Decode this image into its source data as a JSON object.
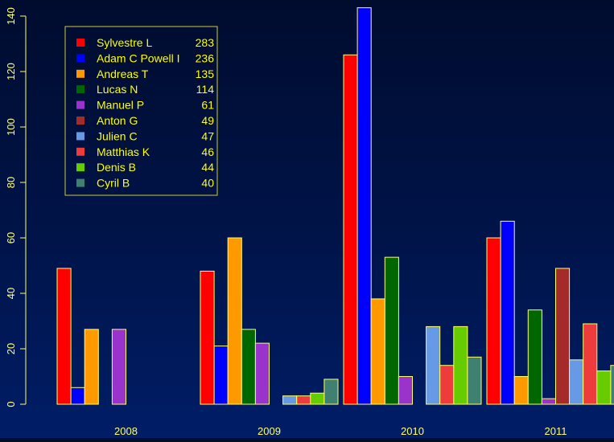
{
  "chart_data": {
    "type": "bar",
    "title": "",
    "xlabel": "",
    "ylabel": "",
    "categories": [
      "2008",
      "2009",
      "2010",
      "2011"
    ],
    "ylim": [
      0,
      140
    ],
    "yticks": [
      0,
      20,
      40,
      60,
      80,
      100,
      120,
      140
    ],
    "grid": false,
    "legend_position": "top-left",
    "series": [
      {
        "name": "Sylvestre L",
        "total": "283",
        "color": "#ff0000",
        "values": [
          49,
          48,
          126,
          60
        ]
      },
      {
        "name": "Adam C Powell I",
        "total": "236",
        "color": "#0000ff",
        "values": [
          6,
          21,
          143,
          66
        ]
      },
      {
        "name": "Andreas T",
        "total": "135",
        "color": "#ff9900",
        "values": [
          27,
          60,
          38,
          10
        ]
      },
      {
        "name": "Lucas N",
        "total": "114",
        "color": "#006600",
        "values": [
          0,
          27,
          53,
          34
        ]
      },
      {
        "name": "Manuel P",
        "total": "61",
        "color": "#9933cc",
        "values": [
          27,
          22,
          10,
          2
        ]
      },
      {
        "name": "Anton G",
        "total": "49",
        "color": "#a52a2a",
        "values": [
          0,
          0,
          0,
          49
        ]
      },
      {
        "name": "Julien C",
        "total": "47",
        "color": "#6699e6",
        "values": [
          0,
          3,
          28,
          16
        ]
      },
      {
        "name": "Matthias K",
        "total": "46",
        "color": "#ee3b3b",
        "values": [
          0,
          3,
          14,
          29
        ]
      },
      {
        "name": "Denis B",
        "total": "44",
        "color": "#66cc00",
        "values": [
          0,
          4,
          28,
          12
        ]
      },
      {
        "name": "Cyril B",
        "total": "40",
        "color": "#408070",
        "values": [
          0,
          9,
          17,
          14
        ]
      }
    ]
  },
  "colors": {
    "axis": "#ffff66",
    "bar_border": "#ffff66",
    "legend_text": "#ffff00",
    "legend_border": "#cccc33"
  }
}
